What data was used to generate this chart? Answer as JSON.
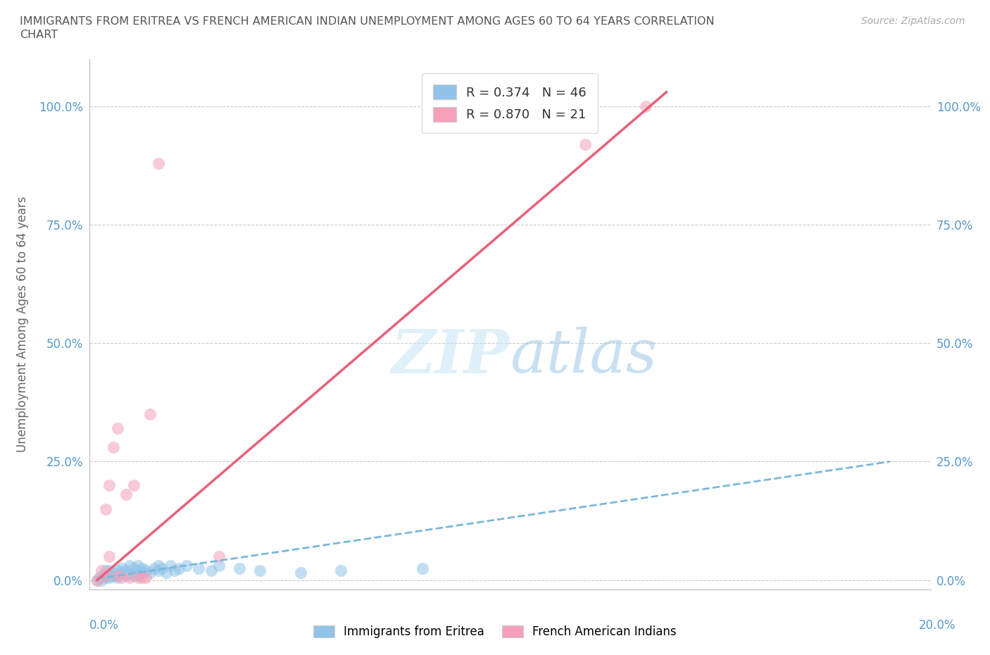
{
  "title_line1": "IMMIGRANTS FROM ERITREA VS FRENCH AMERICAN INDIAN UNEMPLOYMENT AMONG AGES 60 TO 64 YEARS CORRELATION",
  "title_line2": "CHART",
  "source": "Source: ZipAtlas.com",
  "ylabel": "Unemployment Among Ages 60 to 64 years",
  "ytick_values": [
    0.0,
    0.25,
    0.5,
    0.75,
    1.0
  ],
  "ytick_labels": [
    "0.0%",
    "25.0%",
    "50.0%",
    "75.0%",
    "100.0%"
  ],
  "xlim": [
    -0.002,
    0.205
  ],
  "ylim": [
    -0.02,
    1.1
  ],
  "legend_label1": "R = 0.374   N = 46",
  "legend_label2": "R = 0.870   N = 21",
  "bottom_legend1": "Immigrants from Eritrea",
  "bottom_legend2": "French American Indians",
  "color_blue": "#91C4E8",
  "color_pink": "#F5A0B8",
  "color_blue_line": "#7ab8dc",
  "color_pink_line": "#e8607a",
  "watermark_text": "ZIPatlas",
  "blue_x": [
    0.0,
    0.0005,
    0.001,
    0.0015,
    0.002,
    0.002,
    0.003,
    0.003,
    0.003,
    0.004,
    0.004,
    0.005,
    0.005,
    0.005,
    0.006,
    0.006,
    0.007,
    0.007,
    0.008,
    0.008,
    0.009,
    0.009,
    0.01,
    0.01,
    0.01,
    0.011,
    0.011,
    0.012,
    0.013,
    0.014,
    0.015,
    0.015,
    0.016,
    0.017,
    0.018,
    0.019,
    0.02,
    0.022,
    0.025,
    0.028,
    0.03,
    0.035,
    0.04,
    0.05,
    0.06,
    0.08
  ],
  "blue_y": [
    0.0,
    0.005,
    0.0,
    0.01,
    0.005,
    0.02,
    0.01,
    0.005,
    0.02,
    0.008,
    0.015,
    0.01,
    0.02,
    0.005,
    0.015,
    0.025,
    0.01,
    0.02,
    0.015,
    0.03,
    0.01,
    0.025,
    0.02,
    0.01,
    0.03,
    0.015,
    0.025,
    0.02,
    0.015,
    0.025,
    0.02,
    0.03,
    0.025,
    0.015,
    0.03,
    0.02,
    0.025,
    0.03,
    0.025,
    0.02,
    0.03,
    0.025,
    0.02,
    0.015,
    0.02,
    0.025
  ],
  "pink_x": [
    0.0,
    0.001,
    0.002,
    0.002,
    0.003,
    0.003,
    0.004,
    0.005,
    0.005,
    0.006,
    0.007,
    0.008,
    0.009,
    0.01,
    0.011,
    0.012,
    0.013,
    0.015,
    0.03,
    0.12,
    0.135
  ],
  "pink_y": [
    0.0,
    0.02,
    0.01,
    0.15,
    0.05,
    0.2,
    0.28,
    0.01,
    0.32,
    0.005,
    0.18,
    0.005,
    0.2,
    0.005,
    0.005,
    0.005,
    0.35,
    0.88,
    0.05,
    0.92,
    1.0
  ],
  "blue_trend_x": [
    0.0,
    0.195
  ],
  "blue_trend_y": [
    0.003,
    0.25
  ],
  "pink_trend_x": [
    0.0,
    0.14
  ],
  "pink_trend_y": [
    0.0,
    1.03
  ]
}
